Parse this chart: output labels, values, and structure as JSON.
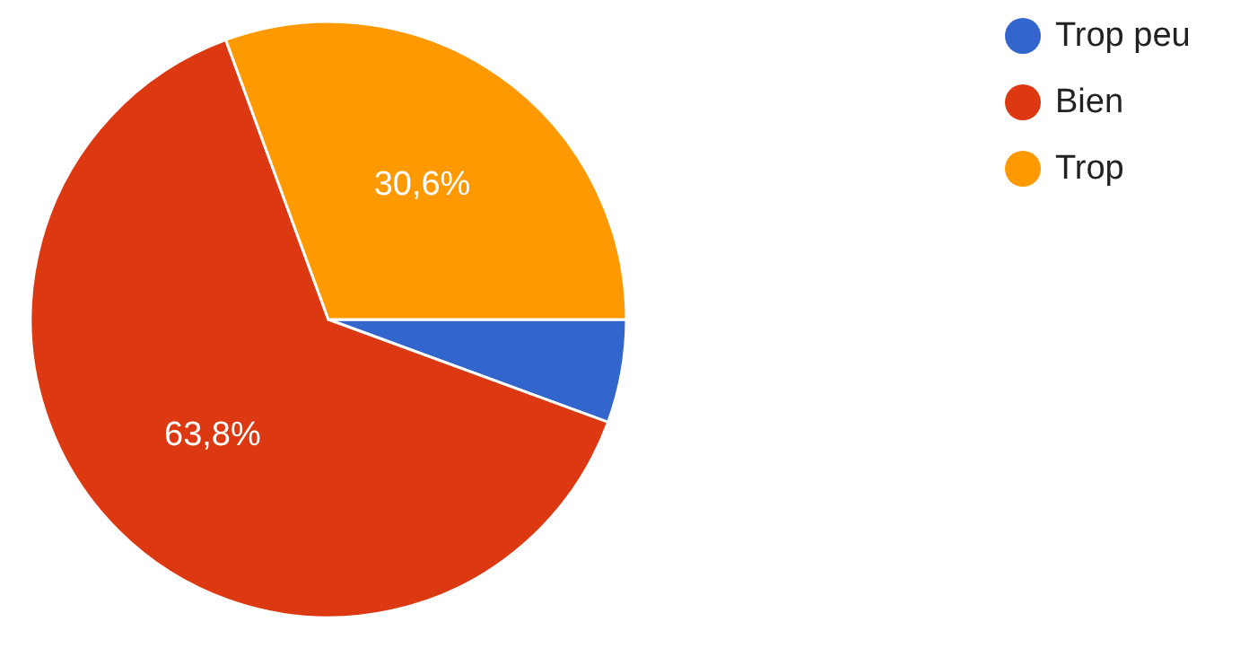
{
  "chart_data": {
    "type": "pie",
    "categories": [
      "Trop peu",
      "Bien",
      "Trop"
    ],
    "values": [
      5.6,
      63.8,
      30.6
    ],
    "colors": [
      "#3366cc",
      "#dc3912",
      "#ff9900"
    ],
    "value_labels": [
      null,
      "63,8%",
      "30,6%"
    ],
    "legend": "top right"
  }
}
